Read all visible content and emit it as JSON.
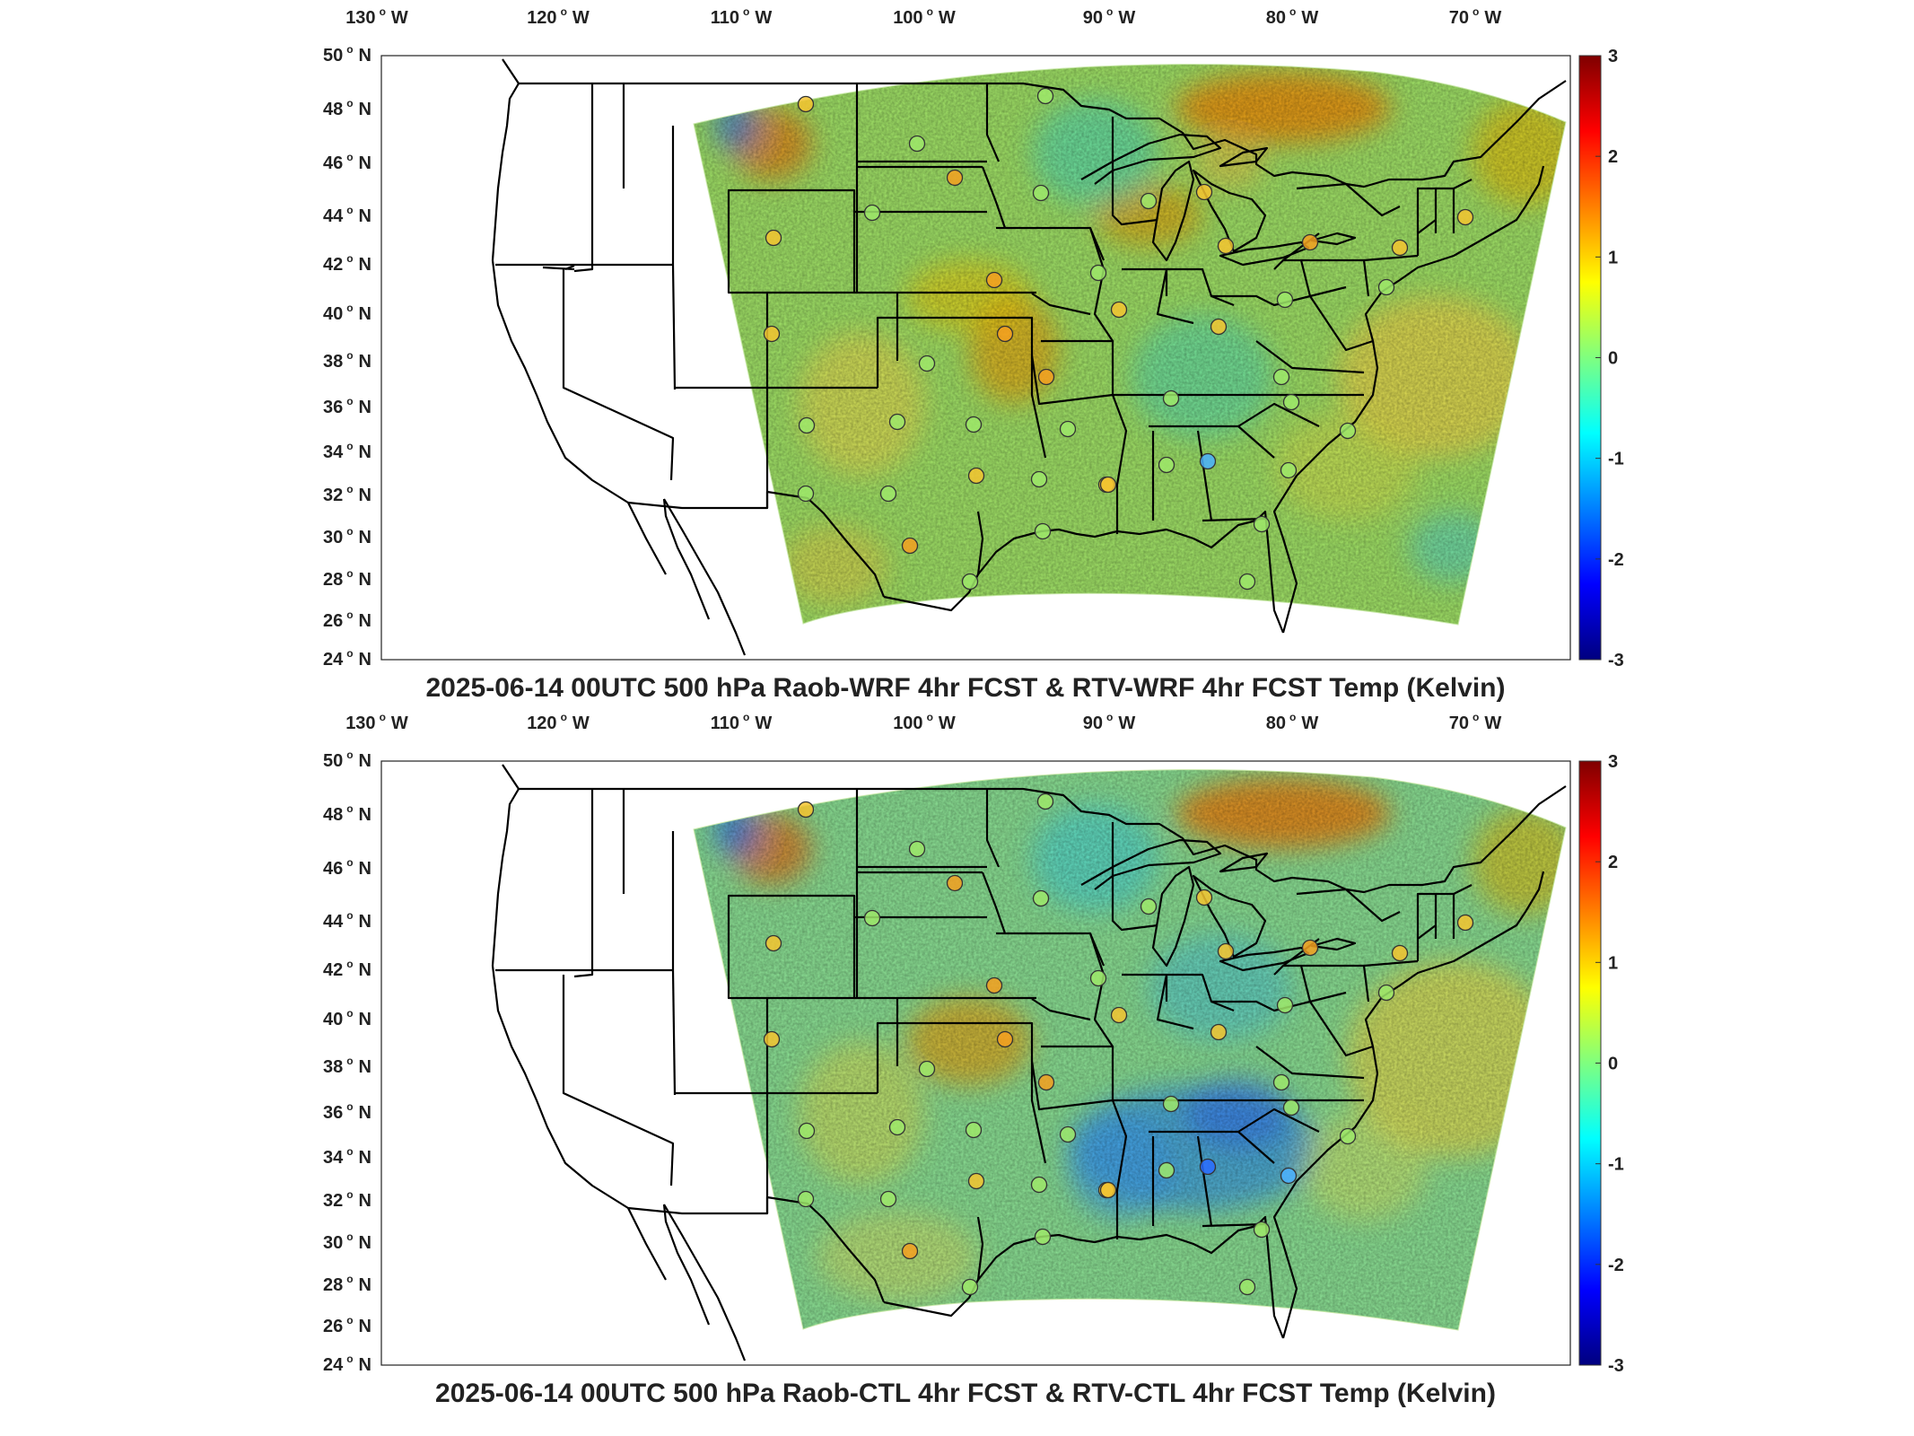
{
  "figure": {
    "panels": [
      {
        "id": "top",
        "title": "2025-06-14 00UTC 500 hPa Raob-WRF 4hr FCST & RTV-WRF 4hr FCST Temp (Kelvin)"
      },
      {
        "id": "bottom",
        "title": "2025-06-14 00UTC 500 hPa Raob-CTL 4hr FCST & RTV-CTL 4hr FCST Temp (Kelvin)"
      }
    ],
    "lon_ticks": [
      {
        "num": "130",
        "dir": "W"
      },
      {
        "num": "120",
        "dir": "W"
      },
      {
        "num": "110",
        "dir": "W"
      },
      {
        "num": "100",
        "dir": "W"
      },
      {
        "num": "90",
        "dir": "W"
      },
      {
        "num": "80",
        "dir": "W"
      },
      {
        "num": "70",
        "dir": "W"
      }
    ],
    "lat_ticks": [
      {
        "num": "50",
        "dir": "N"
      },
      {
        "num": "48",
        "dir": "N"
      },
      {
        "num": "46",
        "dir": "N"
      },
      {
        "num": "44",
        "dir": "N"
      },
      {
        "num": "42",
        "dir": "N"
      },
      {
        "num": "40",
        "dir": "N"
      },
      {
        "num": "38",
        "dir": "N"
      },
      {
        "num": "36",
        "dir": "N"
      },
      {
        "num": "34",
        "dir": "N"
      },
      {
        "num": "32",
        "dir": "N"
      },
      {
        "num": "30",
        "dir": "N"
      },
      {
        "num": "28",
        "dir": "N"
      },
      {
        "num": "26",
        "dir": "N"
      },
      {
        "num": "24",
        "dir": "N"
      }
    ],
    "colorbar": {
      "colormap": "jet",
      "range": [
        -3,
        3
      ],
      "ticks": [
        "3",
        "2",
        "1",
        "0",
        "-1",
        "-2",
        "-3"
      ]
    },
    "colors": {
      "ocean": "#ffffff",
      "borders": "#000000",
      "field_mean": "#9ee86a"
    }
  }
}
